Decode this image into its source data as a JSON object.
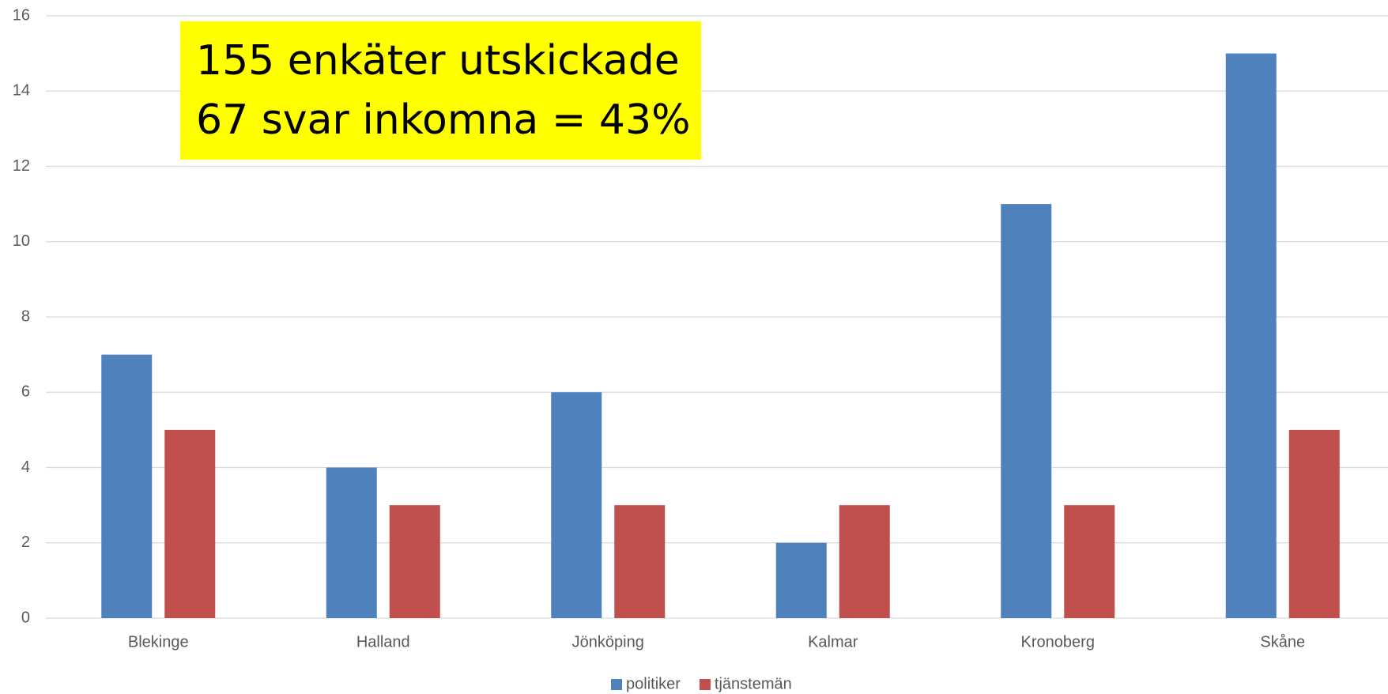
{
  "chart_data": {
    "type": "bar",
    "annotations": [
      "155 enkäter utskickade",
      "67 svar inkomna = 43%"
    ],
    "categories": [
      "Blekinge",
      "Halland",
      "Jönköping",
      "Kalmar",
      "Kronoberg",
      "Skåne"
    ],
    "series": [
      {
        "name": "politiker",
        "color": "#4f81bd",
        "values": [
          7,
          4,
          6,
          2,
          11,
          15
        ]
      },
      {
        "name": "tjänstemän",
        "color": "#c0504d",
        "values": [
          5,
          3,
          3,
          3,
          3,
          5
        ]
      }
    ],
    "ylim": [
      0,
      16
    ],
    "yticks": [
      0,
      2,
      4,
      6,
      8,
      10,
      12,
      14,
      16
    ],
    "grid": true,
    "legend": "bottom"
  }
}
